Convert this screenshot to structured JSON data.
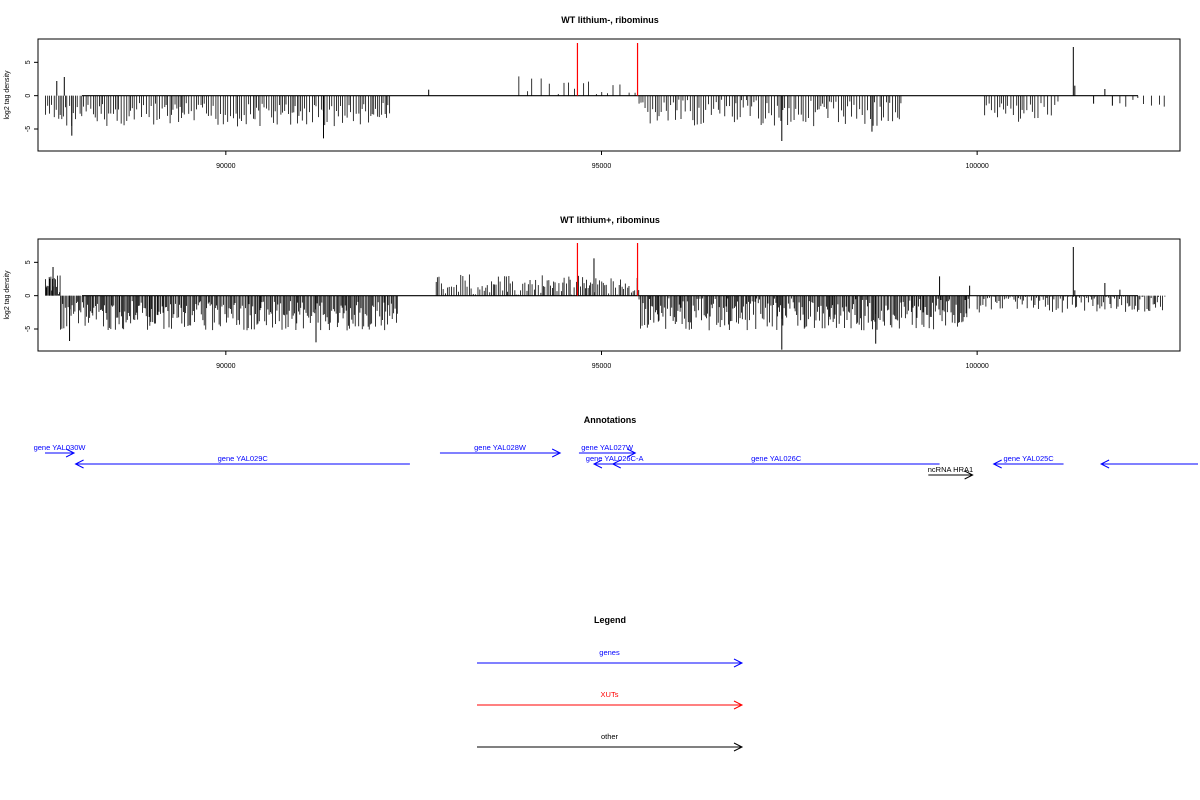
{
  "chart_data": [
    {
      "type": "bar",
      "title": "WT lithium-, ribominus",
      "ylabel": "log2 tag density",
      "xlim": [
        87500,
        102700
      ],
      "ylim": [
        -8.3,
        8.5
      ],
      "xticks": [
        90000,
        95000,
        100000
      ],
      "yticks": [
        -5,
        0,
        5
      ],
      "red_marks": [
        94680,
        95480
      ],
      "segments": [
        {
          "from": 87600,
          "to": 92200,
          "sign": -1,
          "step": 28,
          "mean": 2.9,
          "amp": 1.8
        },
        {
          "from": 93900,
          "to": 95500,
          "sign": 1,
          "step": 90,
          "mean": 1.6,
          "amp": 1.4
        },
        {
          "from": 95500,
          "to": 99000,
          "sign": -1,
          "step": 30,
          "mean": 2.6,
          "amp": 2.0
        },
        {
          "from": 100100,
          "to": 101100,
          "sign": -1,
          "step": 35,
          "mean": 2.4,
          "amp": 1.6
        },
        {
          "from": 101900,
          "to": 102500,
          "sign": -1,
          "step": 90,
          "mean": 1.0,
          "amp": 0.9
        }
      ],
      "spikes": [
        {
          "x": 87750,
          "y": 2.2
        },
        {
          "x": 87850,
          "y": 2.8
        },
        {
          "x": 87950,
          "y": -6.0
        },
        {
          "x": 91300,
          "y": -6.4
        },
        {
          "x": 92700,
          "y": 0.9
        },
        {
          "x": 97400,
          "y": -6.8
        },
        {
          "x": 98600,
          "y": -5.4
        },
        {
          "x": 101280,
          "y": 7.3
        },
        {
          "x": 101300,
          "y": 1.5
        },
        {
          "x": 101700,
          "y": 1.0
        },
        {
          "x": 101550,
          "y": -1.2
        },
        {
          "x": 101800,
          "y": -1.5
        }
      ]
    },
    {
      "type": "bar",
      "title": "WT lithium+, ribominus",
      "ylabel": "log2 tag density",
      "xlim": [
        87500,
        102700
      ],
      "ylim": [
        -8.3,
        8.5
      ],
      "xticks": [
        90000,
        95000,
        100000
      ],
      "yticks": [
        -5,
        0,
        5
      ],
      "red_marks": [
        94680,
        95480
      ],
      "segments": [
        {
          "from": 87600,
          "to": 87800,
          "sign": 1,
          "step": 12,
          "mean": 1.8,
          "amp": 1.6
        },
        {
          "from": 87800,
          "to": 92300,
          "sign": -1,
          "step": 16,
          "mean": 3.0,
          "amp": 2.2
        },
        {
          "from": 92800,
          "to": 95500,
          "sign": 1,
          "step": 25,
          "mean": 1.6,
          "amp": 1.6
        },
        {
          "from": 95500,
          "to": 99900,
          "sign": -1,
          "step": 16,
          "mean": 2.8,
          "amp": 2.4
        },
        {
          "from": 100000,
          "to": 102500,
          "sign": -1,
          "step": 22,
          "mean": 1.2,
          "amp": 1.4
        }
      ],
      "spikes": [
        {
          "x": 87700,
          "y": 4.3
        },
        {
          "x": 87920,
          "y": -6.8
        },
        {
          "x": 91200,
          "y": -7.0
        },
        {
          "x": 94900,
          "y": 5.6
        },
        {
          "x": 97400,
          "y": -8.1
        },
        {
          "x": 98650,
          "y": -7.2
        },
        {
          "x": 99500,
          "y": 2.9
        },
        {
          "x": 99900,
          "y": 1.5
        },
        {
          "x": 101280,
          "y": 7.3
        },
        {
          "x": 101300,
          "y": 0.8
        },
        {
          "x": 101700,
          "y": 1.9
        },
        {
          "x": 101900,
          "y": 0.9
        }
      ]
    }
  ],
  "annotations": {
    "title": "Annotations",
    "features": [
      {
        "label": "gene YAL030W",
        "start": 87480,
        "end": 87980,
        "strand": "+",
        "row": 0,
        "color": "#0000ff"
      },
      {
        "label": "gene YAL029C",
        "start": 88000,
        "end": 92450,
        "strand": "-",
        "row": 1,
        "color": "#0000ff"
      },
      {
        "label": "gene YAL028W",
        "start": 92850,
        "end": 94450,
        "strand": "+",
        "row": 0,
        "color": "#0000ff"
      },
      {
        "label": "gene YAL027W",
        "start": 94700,
        "end": 95450,
        "strand": "+",
        "row": 0,
        "color": "#0000ff"
      },
      {
        "label": "gene YAL026C-A",
        "start": 94900,
        "end": 95450,
        "strand": "-",
        "row": 1,
        "color": "#0000ff"
      },
      {
        "label": "gene YAL026C",
        "start": 95150,
        "end": 99500,
        "strand": "-",
        "row": 1,
        "color": "#0000ff"
      },
      {
        "label": "ncRNA HRA1",
        "start": 99350,
        "end": 99940,
        "strand": "+",
        "row": 2,
        "color": "#000000"
      },
      {
        "label": "gene YAL025C",
        "start": 100220,
        "end": 101150,
        "strand": "-",
        "row": 1,
        "color": "#0000ff"
      },
      {
        "label": "",
        "start": 101650,
        "end": 103300,
        "strand": "-",
        "row": 1,
        "color": "#0000ff"
      }
    ]
  },
  "legend": {
    "title": "Legend",
    "items": [
      {
        "label": "genes",
        "color": "#0000ff"
      },
      {
        "label": "XUTs",
        "color": "#ff0000"
      },
      {
        "label": "other",
        "color": "#000000"
      }
    ]
  }
}
